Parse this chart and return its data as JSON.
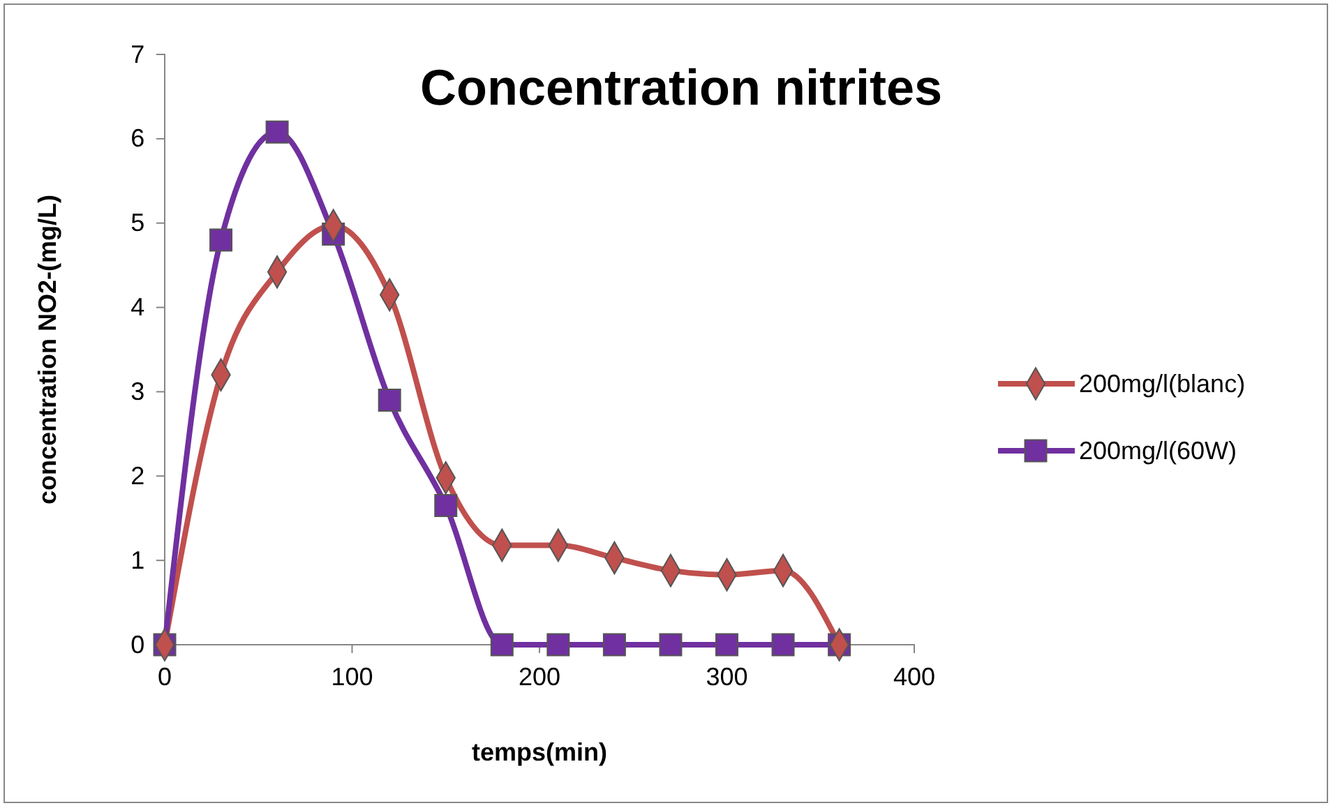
{
  "chart_data": {
    "type": "line",
    "title": "Concentration nitrites",
    "xlabel": "temps(min)",
    "ylabel": "concentration NO2-(mg/L)",
    "x": [
      0,
      30,
      60,
      90,
      120,
      150,
      180,
      210,
      240,
      270,
      300,
      330,
      360
    ],
    "series": [
      {
        "name": "200mg/l(blanc)",
        "color": "#c0504d",
        "marker": "diamond",
        "values": [
          0,
          3.2,
          4.42,
          4.97,
          4.15,
          1.98,
          1.18,
          1.18,
          1.03,
          0.88,
          0.83,
          0.88,
          0
        ]
      },
      {
        "name": "200mg/l(60W)",
        "color": "#7030a0",
        "marker": "square",
        "values": [
          0,
          4.8,
          6.08,
          4.87,
          2.9,
          1.65,
          0,
          0,
          0,
          0,
          0,
          0,
          0
        ]
      }
    ],
    "xlim": [
      0,
      400
    ],
    "xticks": [
      0,
      100,
      200,
      300,
      400
    ],
    "ylim": [
      0,
      7
    ],
    "yticks": [
      0,
      1,
      2,
      3,
      4,
      5,
      6,
      7
    ],
    "grid": false,
    "legend": "right",
    "line_style": "solid"
  }
}
